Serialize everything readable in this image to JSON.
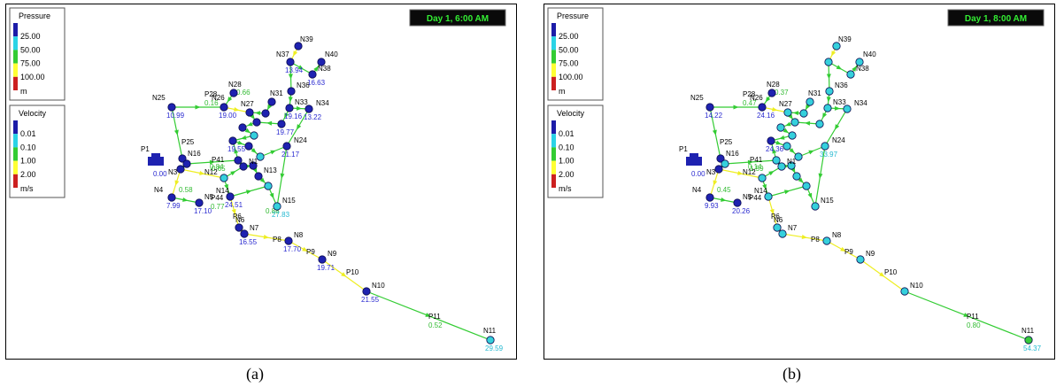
{
  "colors": {
    "pressure_scale": [
      "#1c1ca8",
      "#2ad3e6",
      "#33cc33",
      "#ffff33",
      "#cc2020"
    ],
    "velocity_scale": [
      "#1c1ca8",
      "#2ad3e6",
      "#33cc33",
      "#ffff33",
      "#cc2020"
    ],
    "node_blue": "#1e22b0",
    "node_cyan": "#35d0dc",
    "node_green": "#35cc3a",
    "clock_bg": "#0a0a0a",
    "clock_fg": "#33ee33"
  },
  "panels": [
    {
      "id": "a",
      "caption": "(a)",
      "time": "Day 1, 6:00 AM",
      "pressure_legend": {
        "title": "Pressure",
        "values": [
          "25.00",
          "50.00",
          "75.00",
          "100.00"
        ],
        "unit": "m"
      },
      "velocity_legend": {
        "title": "Velocity",
        "values": [
          "0.01",
          "0.10",
          "1.00",
          "2.00"
        ],
        "unit": "m/s"
      },
      "nodes": [
        {
          "id": "N39",
          "label": "N39",
          "value": "",
          "level": "blue"
        },
        {
          "id": "N40",
          "label": "N40",
          "value": "",
          "level": "blue"
        },
        {
          "id": "N38",
          "label": "N38",
          "value": "16.63",
          "level": "blue"
        },
        {
          "id": "N37",
          "label": "N37",
          "value": "13.94",
          "level": "blue"
        },
        {
          "id": "N36",
          "label": "N36",
          "value": "",
          "level": "blue"
        },
        {
          "id": "N28",
          "label": "N28",
          "value": "",
          "level": "blue"
        },
        {
          "id": "N25",
          "label": "N25",
          "value": "10.99",
          "level": "blue"
        },
        {
          "id": "N26",
          "label": "N26",
          "value": "19.00",
          "level": "blue"
        },
        {
          "id": "N27",
          "label": "N27",
          "value": "",
          "level": "blue"
        },
        {
          "id": "N31",
          "label": "N31",
          "value": "",
          "level": "blue"
        },
        {
          "id": "N33",
          "label": "N33",
          "value": "19.16",
          "level": "blue"
        },
        {
          "id": "N34",
          "label": "N34",
          "value": "13.22",
          "level": "blue"
        },
        {
          "id": "N32",
          "label": "",
          "value": "19.77",
          "level": "blue"
        },
        {
          "id": "N24",
          "label": "N24",
          "value": "21.17",
          "level": "blue"
        },
        {
          "id": "N29",
          "label": "",
          "value": "",
          "level": "blue"
        },
        {
          "id": "N30",
          "label": "",
          "value": "",
          "level": "blue"
        },
        {
          "id": "N22",
          "label": "",
          "value": "19.55",
          "level": "blue"
        },
        {
          "id": "N21",
          "label": "",
          "value": "",
          "level": "cyan"
        },
        {
          "id": "N20",
          "label": "",
          "value": "",
          "level": "blue"
        },
        {
          "id": "N23",
          "label": "",
          "value": "",
          "level": "cyan"
        },
        {
          "id": "N19",
          "label": "",
          "value": "",
          "level": "blue"
        },
        {
          "id": "N16",
          "label": "N16",
          "value": "",
          "level": "blue"
        },
        {
          "id": "N17",
          "label": "",
          "value": "",
          "level": "blue"
        },
        {
          "id": "N18",
          "label": "",
          "value": "",
          "level": "blue"
        },
        {
          "id": "N1",
          "label": "N1",
          "value": "",
          "level": "blue"
        },
        {
          "id": "N2",
          "label": "",
          "value": "",
          "level": "blue"
        },
        {
          "id": "N3",
          "label": "N3",
          "value": "",
          "level": "blue"
        },
        {
          "id": "N12",
          "label": "N12",
          "value": "",
          "level": "cyan"
        },
        {
          "id": "N13",
          "label": "N13",
          "value": "",
          "level": "blue"
        },
        {
          "id": "N4",
          "label": "N4",
          "value": "7.99",
          "level": "blue"
        },
        {
          "id": "N5",
          "label": "N5",
          "value": "17.10",
          "level": "blue"
        },
        {
          "id": "N14",
          "label": "N14",
          "value": "24.51",
          "level": "blue"
        },
        {
          "id": "N15",
          "label": "N15",
          "value": "27.83",
          "level": "cyan"
        },
        {
          "id": "N54",
          "label": "",
          "value": "",
          "level": "cyan"
        },
        {
          "id": "N6",
          "label": "N6",
          "value": "",
          "level": "blue"
        },
        {
          "id": "N7",
          "label": "N7",
          "value": "16.55",
          "level": "blue"
        },
        {
          "id": "N8",
          "label": "N8",
          "value": "17.70",
          "level": "blue"
        },
        {
          "id": "N9",
          "label": "N9",
          "value": "19.71",
          "level": "blue"
        },
        {
          "id": "N10",
          "label": "N10",
          "value": "21.55",
          "level": "blue"
        },
        {
          "id": "N11",
          "label": "N11",
          "value": "29.59",
          "level": "cyan"
        }
      ],
      "link_labels": [
        {
          "label": "P28",
          "value": "0.16"
        },
        {
          "label": "P25",
          "value": ""
        },
        {
          "label": "P41",
          "value": "0.65"
        },
        {
          "label": "P44",
          "value": "0.77"
        },
        {
          "label": "P6",
          "value": ""
        },
        {
          "label": "P8",
          "value": ""
        },
        {
          "label": "P9",
          "value": ""
        },
        {
          "label": "P10",
          "value": ""
        },
        {
          "label": "P11",
          "value": "0.52"
        },
        {
          "label": "",
          "value": "0.66"
        },
        {
          "label": "",
          "value": "0.84"
        },
        {
          "label": "",
          "value": "0.58"
        },
        {
          "label": "",
          "value": "0.88"
        }
      ],
      "reservoir": {
        "label": "P1",
        "value": "0.00"
      }
    },
    {
      "id": "b",
      "caption": "(b)",
      "time": "Day 1, 8:00 AM",
      "pressure_legend": {
        "title": "Pressure",
        "values": [
          "25.00",
          "50.00",
          "75.00",
          "100.00"
        ],
        "unit": "m"
      },
      "velocity_legend": {
        "title": "Velocity",
        "values": [
          "0.01",
          "0.10",
          "1.00",
          "2.00"
        ],
        "unit": "m/s"
      },
      "nodes": [
        {
          "id": "N39",
          "label": "N39",
          "value": "",
          "level": "cyan"
        },
        {
          "id": "N40",
          "label": "N40",
          "value": "",
          "level": "cyan"
        },
        {
          "id": "N38",
          "label": "N38",
          "value": "",
          "level": "cyan"
        },
        {
          "id": "N37",
          "label": "",
          "value": "",
          "level": "cyan"
        },
        {
          "id": "N36",
          "label": "N36",
          "value": "",
          "level": "cyan"
        },
        {
          "id": "N28",
          "label": "N28",
          "value": "",
          "level": "blue"
        },
        {
          "id": "N25",
          "label": "N25",
          "value": "14.22",
          "level": "blue"
        },
        {
          "id": "N26",
          "label": "N26",
          "value": "24.16",
          "level": "blue"
        },
        {
          "id": "N27",
          "label": "N27",
          "value": "",
          "level": "cyan"
        },
        {
          "id": "N31",
          "label": "N31",
          "value": "",
          "level": "cyan"
        },
        {
          "id": "N33",
          "label": "N33",
          "value": "",
          "level": "cyan"
        },
        {
          "id": "N34",
          "label": "N34",
          "value": "",
          "level": "cyan"
        },
        {
          "id": "N32",
          "label": "",
          "value": "",
          "level": "cyan"
        },
        {
          "id": "N24",
          "label": "N24",
          "value": "33.97",
          "level": "cyan"
        },
        {
          "id": "N29",
          "label": "",
          "value": "",
          "level": "cyan"
        },
        {
          "id": "N30",
          "label": "",
          "value": "",
          "level": "cyan"
        },
        {
          "id": "N22",
          "label": "",
          "value": "24.36",
          "level": "blue"
        },
        {
          "id": "N21",
          "label": "",
          "value": "",
          "level": "cyan"
        },
        {
          "id": "N20",
          "label": "",
          "value": "",
          "level": "cyan"
        },
        {
          "id": "N23",
          "label": "",
          "value": "",
          "level": "cyan"
        },
        {
          "id": "N19",
          "label": "",
          "value": "",
          "level": "cyan"
        },
        {
          "id": "N16",
          "label": "N16",
          "value": "",
          "level": "blue"
        },
        {
          "id": "N17",
          "label": "",
          "value": "",
          "level": "cyan"
        },
        {
          "id": "N18",
          "label": "",
          "value": "",
          "level": "cyan"
        },
        {
          "id": "N1",
          "label": "N1",
          "value": "",
          "level": "cyan"
        },
        {
          "id": "N2",
          "label": "",
          "value": "",
          "level": "cyan"
        },
        {
          "id": "N3",
          "label": "N3",
          "value": "",
          "level": "blue"
        },
        {
          "id": "N12",
          "label": "N12",
          "value": "",
          "level": "cyan"
        },
        {
          "id": "N13",
          "label": "",
          "value": "",
          "level": "cyan"
        },
        {
          "id": "N4",
          "label": "N4",
          "value": "9.93",
          "level": "blue"
        },
        {
          "id": "N5",
          "label": "N5",
          "value": "20.26",
          "level": "blue"
        },
        {
          "id": "N14",
          "label": "N14",
          "value": "",
          "level": "cyan"
        },
        {
          "id": "N15",
          "label": "N15",
          "value": "",
          "level": "cyan"
        },
        {
          "id": "N54",
          "label": "",
          "value": "",
          "level": "cyan"
        },
        {
          "id": "N6",
          "label": "N6",
          "value": "",
          "level": "cyan"
        },
        {
          "id": "N7",
          "label": "N7",
          "value": "",
          "level": "cyan"
        },
        {
          "id": "N8",
          "label": "N8",
          "value": "",
          "level": "cyan"
        },
        {
          "id": "N9",
          "label": "N9",
          "value": "",
          "level": "cyan"
        },
        {
          "id": "N10",
          "label": "N10",
          "value": "",
          "level": "cyan"
        },
        {
          "id": "N11",
          "label": "N11",
          "value": "54.37",
          "level": "green"
        }
      ],
      "link_labels": [
        {
          "label": "P28",
          "value": "0.47"
        },
        {
          "label": "P25",
          "value": ""
        },
        {
          "label": "P41",
          "value": "1.59"
        },
        {
          "label": "P44",
          "value": ""
        },
        {
          "label": "P6",
          "value": ""
        },
        {
          "label": "P8",
          "value": ""
        },
        {
          "label": "P9",
          "value": ""
        },
        {
          "label": "P10",
          "value": ""
        },
        {
          "label": "P11",
          "value": "0.80"
        },
        {
          "label": "",
          "value": "0.37"
        },
        {
          "label": "",
          "value": "0.14"
        },
        {
          "label": "",
          "value": "0.45"
        },
        {
          "label": "",
          "value": ""
        }
      ],
      "reservoir": {
        "label": "P1",
        "value": "0.00"
      }
    }
  ]
}
